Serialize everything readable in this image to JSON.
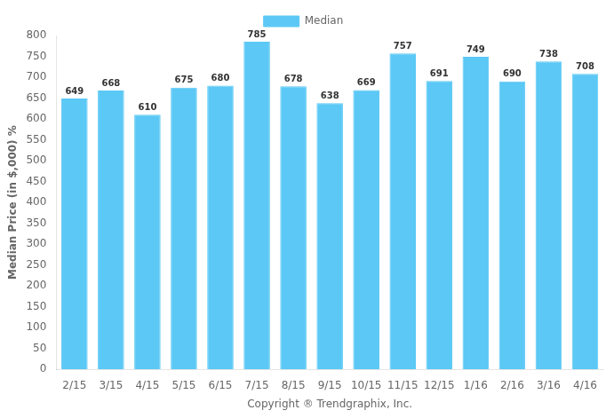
{
  "chart_data": {
    "type": "bar",
    "categories": [
      "2/15",
      "3/15",
      "4/15",
      "5/15",
      "6/15",
      "7/15",
      "8/15",
      "9/15",
      "10/15",
      "11/15",
      "12/15",
      "1/16",
      "2/16",
      "3/16",
      "4/16"
    ],
    "series": [
      {
        "name": "Median",
        "color": "#5BC8F5",
        "values": [
          649,
          668,
          610,
          675,
          680,
          785,
          678,
          638,
          669,
          757,
          691,
          749,
          690,
          738,
          708
        ]
      }
    ],
    "xlabel": "Copyright ® Trendgraphix, Inc.",
    "ylabel": "Median Price (in $,000) %",
    "ylim": [
      0,
      800
    ],
    "yticks": [
      0,
      50,
      100,
      150,
      200,
      250,
      300,
      350,
      400,
      450,
      500,
      550,
      600,
      650,
      700,
      750,
      800
    ],
    "grid": false,
    "legend": "top",
    "data_labels": true
  }
}
